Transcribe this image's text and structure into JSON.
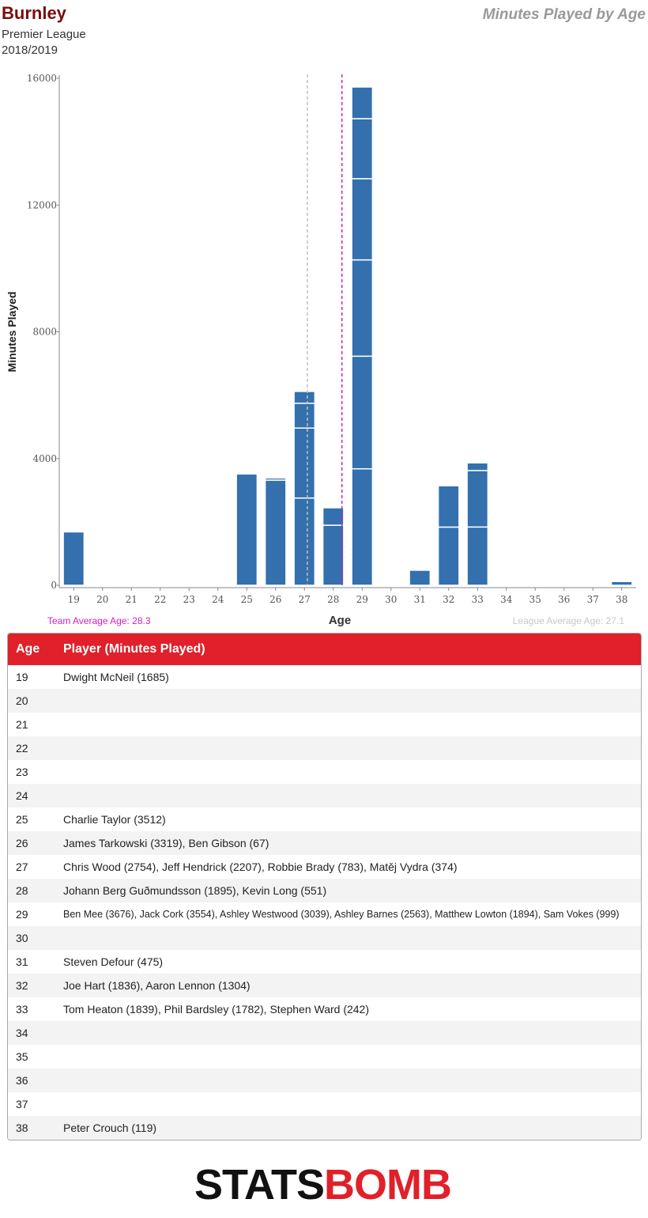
{
  "header": {
    "team": "Burnley",
    "league": "Premier League",
    "season": "2018/2019",
    "title": "Minutes Played by Age"
  },
  "chart_data": {
    "type": "bar",
    "stacked": true,
    "xlabel": "Age",
    "ylabel": "Minutes Played",
    "ylim": [
      0,
      16000
    ],
    "yticks": [
      0,
      4000,
      8000,
      12000,
      16000
    ],
    "categories": [
      19,
      20,
      21,
      22,
      23,
      24,
      25,
      26,
      27,
      28,
      29,
      30,
      31,
      32,
      33,
      34,
      35,
      36,
      37,
      38
    ],
    "stacks": {
      "19": [
        1685
      ],
      "25": [
        3512
      ],
      "26": [
        3319,
        67
      ],
      "27": [
        2754,
        2207,
        783,
        374
      ],
      "28": [
        1895,
        551
      ],
      "29": [
        3676,
        3554,
        3039,
        2563,
        1894,
        999
      ],
      "31": [
        475
      ],
      "32": [
        1836,
        1304
      ],
      "33": [
        1839,
        1782,
        242
      ],
      "38": [
        119
      ]
    },
    "team_average_age": 28.3,
    "league_average_age": 27.1,
    "bar_color": "#3370ad",
    "team_avg_color": "#d020c0",
    "league_avg_color": "#c0c0c0"
  },
  "annotations": {
    "team_avg_label": "Team Average Age: 28.3",
    "league_avg_label": "League Average Age: 27.1"
  },
  "table": {
    "headers": [
      "Age",
      "Player (Minutes Played)"
    ],
    "rows": [
      {
        "age": "19",
        "players": "Dwight McNeil (1685)"
      },
      {
        "age": "20",
        "players": ""
      },
      {
        "age": "21",
        "players": ""
      },
      {
        "age": "22",
        "players": ""
      },
      {
        "age": "23",
        "players": ""
      },
      {
        "age": "24",
        "players": ""
      },
      {
        "age": "25",
        "players": "Charlie Taylor (3512)"
      },
      {
        "age": "26",
        "players": "James Tarkowski (3319), Ben Gibson (67)"
      },
      {
        "age": "27",
        "players": "Chris Wood (2754), Jeff Hendrick (2207), Robbie Brady (783), Matěj Vydra (374)"
      },
      {
        "age": "28",
        "players": "Johann Berg Guðmundsson (1895), Kevin Long (551)"
      },
      {
        "age": "29",
        "players": "Ben Mee (3676), Jack Cork (3554), Ashley Westwood (3039), Ashley Barnes (2563), Matthew Lowton (1894), Sam Vokes (999)"
      },
      {
        "age": "30",
        "players": ""
      },
      {
        "age": "31",
        "players": "Steven Defour (475)"
      },
      {
        "age": "32",
        "players": "Joe Hart (1836), Aaron Lennon (1304)"
      },
      {
        "age": "33",
        "players": "Tom Heaton (1839), Phil Bardsley (1782), Stephen Ward (242)"
      },
      {
        "age": "34",
        "players": ""
      },
      {
        "age": "35",
        "players": ""
      },
      {
        "age": "36",
        "players": ""
      },
      {
        "age": "37",
        "players": ""
      },
      {
        "age": "38",
        "players": "Peter Crouch (119)"
      }
    ]
  },
  "footer": {
    "logo_text_left": "STATS",
    "logo_text_right": "BOMB",
    "logo_colors": {
      "left": "#111111",
      "right": "#e0202a"
    }
  }
}
